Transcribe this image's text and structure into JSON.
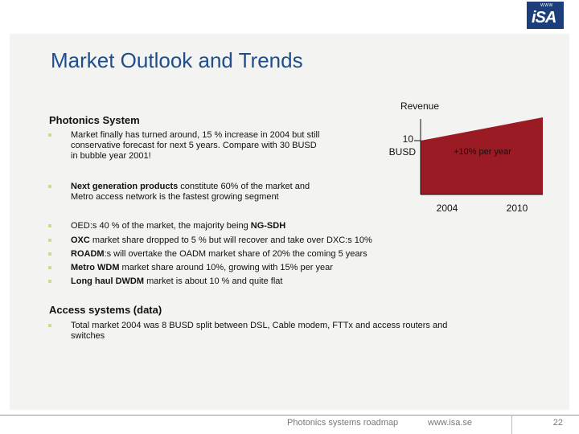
{
  "logo": {
    "small": "WWW",
    "main": "iSA"
  },
  "title": "Market Outlook and Trends",
  "sections": {
    "photonics": {
      "heading": "Photonics System",
      "bullets": [
        {
          "parts": [
            {
              "text": "Market finally has turned around, 15 % increase in 2004 but still conservative forecast for next 5 years. Compare with 30 BUSD in bubble year 2001!",
              "bold": false
            }
          ]
        },
        {
          "parts": [
            {
              "text": "Next generation products",
              "bold": true
            },
            {
              "text": " constitute 60% of the market and Metro access network is the fastest growing segment",
              "bold": false
            }
          ]
        },
        {
          "parts": [
            {
              "text": "OED:s 40 % of the market, the majority being ",
              "bold": false
            },
            {
              "text": "NG-SDH",
              "bold": true
            }
          ]
        },
        {
          "parts": [
            {
              "text": "OXC",
              "bold": true
            },
            {
              "text": " market share dropped to 5 % but will recover and take over DXC:s 10%",
              "bold": false
            }
          ]
        },
        {
          "parts": [
            {
              "text": "ROADM",
              "bold": true
            },
            {
              "text": ":s will overtake the OADM market share of 20% the coming 5 years",
              "bold": false
            }
          ]
        },
        {
          "parts": [
            {
              "text": "Metro WDM",
              "bold": true
            },
            {
              "text": " market share around 10%, growing with 15% per year",
              "bold": false
            }
          ]
        },
        {
          "parts": [
            {
              "text": "Long haul DWDM",
              "bold": true
            },
            {
              "text": " market is about 10 % and quite flat",
              "bold": false
            }
          ]
        }
      ]
    },
    "access": {
      "heading": "Access systems (data)",
      "bullets": [
        {
          "parts": [
            {
              "text": "Total market 2004 was 8 BUSD split between DSL, Cable modem, FTTx and access routers and switches",
              "bold": false
            }
          ]
        }
      ]
    }
  },
  "chart_data": {
    "type": "area",
    "title": "Revenue",
    "x": [
      2004,
      2010
    ],
    "x_tick_labels": [
      "2004",
      "2010"
    ],
    "y_tick_label": "10",
    "y_unit_label": "BUSD",
    "values": [
      10,
      15
    ],
    "annotation": "+10% per year",
    "fill_color": "#9b1b24"
  },
  "footer": {
    "doc": "Photonics systems roadmap",
    "url": "www.isa.se",
    "page": "22"
  }
}
